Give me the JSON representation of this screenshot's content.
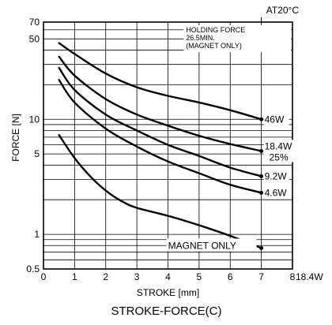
{
  "chart_data": {
    "type": "line",
    "title": "STROKE-FORCE(C)",
    "xlabel": "STROKE [mm]",
    "ylabel": "FORCE [N]",
    "condition": "AT20°C",
    "holding_force_note": [
      "HOLDING FORCE",
      "26.5MIN.",
      "(MAGNET ONLY)"
    ],
    "xlim": [
      0,
      8
    ],
    "ylim": [
      0.5,
      70
    ],
    "y_scale": "log",
    "grid": true,
    "x_ticks": [
      "0",
      "1",
      "2",
      "3",
      "4",
      "5",
      "6",
      "7",
      "8"
    ],
    "y_ticks": [
      {
        "value": 0.5,
        "label": "0.5"
      },
      {
        "value": 1,
        "label": "1"
      },
      {
        "value": 5,
        "label": "5"
      },
      {
        "value": 10,
        "label": "10"
      },
      {
        "value": 50,
        "label": "50"
      },
      {
        "value": 70,
        "label": "70"
      }
    ],
    "series": [
      {
        "name": "46W",
        "x": [
          0.5,
          1,
          2,
          3,
          4,
          5,
          6,
          7
        ],
        "y": [
          46,
          37,
          25,
          19,
          16,
          14,
          12,
          10
        ]
      },
      {
        "name": "18.4W 25%",
        "x": [
          0.5,
          1,
          2,
          3,
          4,
          5,
          6,
          7
        ],
        "y": [
          35,
          24,
          15,
          11,
          8.8,
          7.2,
          6.1,
          5.3
        ]
      },
      {
        "name": "9.2W",
        "x": [
          0.5,
          1,
          2,
          3,
          4,
          5,
          6,
          7
        ],
        "y": [
          28,
          18,
          11,
          8,
          6,
          4.8,
          3.8,
          3.2
        ]
      },
      {
        "name": "4.6W",
        "x": [
          0.5,
          1,
          2,
          3,
          4,
          5,
          6,
          7
        ],
        "y": [
          22,
          14,
          8.3,
          5.8,
          4.3,
          3.4,
          2.7,
          2.3
        ]
      },
      {
        "name": "MAGNET ONLY",
        "x": [
          0.5,
          1,
          1.5,
          2,
          2.5,
          3,
          4,
          5,
          6,
          7
        ],
        "y": [
          7.3,
          4.6,
          3.2,
          2.4,
          1.95,
          1.7,
          1.45,
          1.2,
          0.97,
          0.76
        ]
      }
    ],
    "outside_label": "18.4W"
  }
}
